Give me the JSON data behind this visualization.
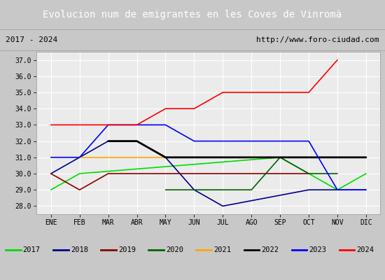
{
  "title": "Evolucion num de emigrantes en les Coves de Vinromà",
  "subtitle_left": "2017 - 2024",
  "subtitle_right": "http://www.foro-ciudad.com",
  "months": [
    "ENE",
    "FEB",
    "MAR",
    "ABR",
    "MAY",
    "JUN",
    "JUL",
    "AGO",
    "SEP",
    "OCT",
    "NOV",
    "DIC"
  ],
  "ylim": [
    27.5,
    37.5
  ],
  "yticks": [
    28.0,
    29.0,
    30.0,
    31.0,
    32.0,
    33.0,
    34.0,
    35.0,
    36.0,
    37.0
  ],
  "ytick_labels": [
    "28.0",
    "29.0",
    "30.0",
    "31.0",
    "32.0",
    "33.0",
    "34.0",
    "35.0",
    "36.0",
    "37.0"
  ],
  "series": [
    {
      "label": "2017",
      "color": "#00dd00",
      "lw": 1.2,
      "x": [
        1,
        2,
        9,
        10,
        11,
        12
      ],
      "y": [
        29,
        30,
        31,
        30,
        29,
        30
      ]
    },
    {
      "label": "2018",
      "color": "#00008b",
      "lw": 1.2,
      "x": [
        1,
        2,
        3,
        4,
        5,
        6,
        7,
        10,
        11,
        12
      ],
      "y": [
        30,
        31,
        32,
        32,
        31,
        29,
        28,
        29,
        29,
        29
      ]
    },
    {
      "label": "2019",
      "color": "#8b0000",
      "lw": 1.2,
      "x": [
        1,
        2,
        3,
        4,
        5,
        6,
        7,
        8,
        9,
        10
      ],
      "y": [
        30,
        29,
        30,
        30,
        30,
        30,
        30,
        30,
        30,
        30
      ]
    },
    {
      "label": "2020",
      "color": "#006400",
      "lw": 1.2,
      "x": [
        5,
        6,
        7,
        8,
        9,
        10,
        11
      ],
      "y": [
        29,
        29,
        29,
        29,
        31,
        30,
        30
      ]
    },
    {
      "label": "2021",
      "color": "#ffa500",
      "lw": 1.2,
      "x": [
        2,
        3,
        4,
        5
      ],
      "y": [
        31,
        31,
        31,
        31
      ]
    },
    {
      "label": "2022",
      "color": "#000000",
      "lw": 2.0,
      "x": [
        3,
        4,
        5,
        6,
        7,
        8,
        9,
        10,
        11,
        12
      ],
      "y": [
        32,
        32,
        31,
        31,
        31,
        31,
        31,
        31,
        31,
        31
      ]
    },
    {
      "label": "2023",
      "color": "#0000ff",
      "lw": 1.2,
      "x": [
        1,
        2,
        3,
        4,
        5,
        6,
        7,
        8,
        9,
        10,
        11,
        12
      ],
      "y": [
        31,
        31,
        33,
        33,
        33,
        32,
        32,
        32,
        32,
        32,
        29,
        29
      ]
    },
    {
      "label": "2024",
      "color": "#ff0000",
      "lw": 1.2,
      "x": [
        1,
        2,
        3,
        4,
        5,
        6,
        7,
        8,
        9,
        10,
        11
      ],
      "y": [
        33,
        33,
        33,
        33,
        34,
        34,
        35,
        35,
        35,
        35,
        37
      ]
    }
  ],
  "fig_bg": "#c8c8c8",
  "title_bg": "#4472c4",
  "title_fg": "#ffffff",
  "subtitle_bg": "#dcdcdc",
  "plot_bg": "#ebebeb",
  "grid_color": "#ffffff",
  "legend_bg": "#ffffff",
  "legend_border": "#999999",
  "title_fontsize": 10,
  "subtitle_fontsize": 8,
  "tick_fontsize": 7,
  "legend_fontsize": 7.5
}
